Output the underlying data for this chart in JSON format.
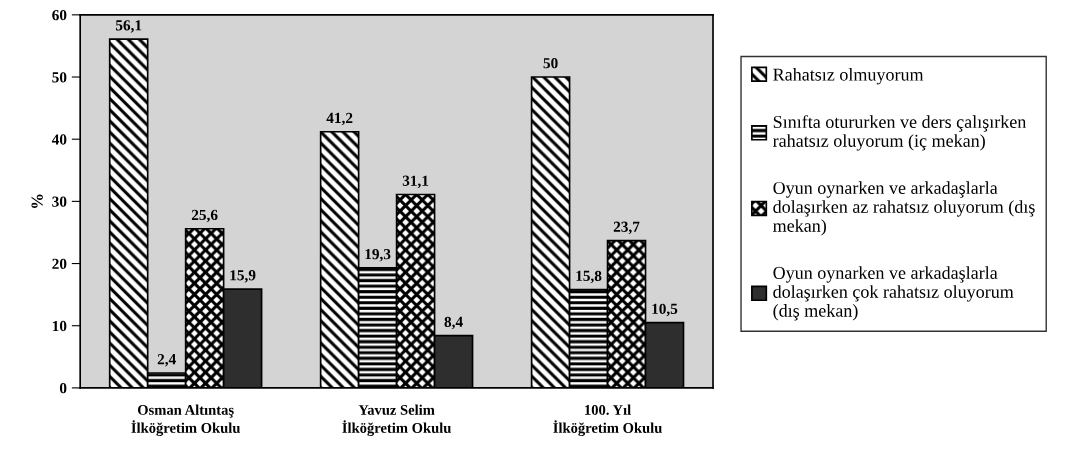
{
  "chart_data": {
    "type": "bar",
    "ylabel": "%",
    "categories": [
      "Osman Altıntaş\nİlköğretim Okulu",
      "Yavuz Selim\nİlköğretim Okulu",
      "100. Yıl\nİlköğretim Okulu"
    ],
    "series": [
      {
        "name": "Rahatsız olmuyorum",
        "color": "#000000",
        "values": [
          56.1,
          41.2,
          50
        ],
        "value_labels": [
          "56,1",
          "41,2",
          "50"
        ]
      },
      {
        "name": "Sınıfta otururken ve ders çalışırken\nrahatsız oluyorum (iç mekan)",
        "color": "#000000",
        "values": [
          2.4,
          19.3,
          15.8
        ],
        "value_labels": [
          "2,4",
          "19,3",
          "15,8"
        ]
      },
      {
        "name": "Oyun oynarken ve arkadaşlarla\ndolaşırken az rahatsız oluyorum (dış\nmekan)",
        "color": "#000000",
        "values": [
          25.6,
          31.1,
          23.7
        ],
        "value_labels": [
          "25,6",
          "31,1",
          "23,7"
        ]
      },
      {
        "name": "Oyun oynarken ve arkadaşlarla\ndolaşırken çok rahatsız oluyorum\n(dış mekan)",
        "color": "#2e2e2e",
        "values": [
          15.9,
          8.4,
          10.5
        ],
        "value_labels": [
          "15,9",
          "8,4",
          "10,5"
        ]
      }
    ],
    "ylim": [
      0,
      60
    ],
    "yticks": [
      0,
      10,
      20,
      30,
      40,
      50,
      60
    ],
    "legend": "right",
    "grid": false
  }
}
